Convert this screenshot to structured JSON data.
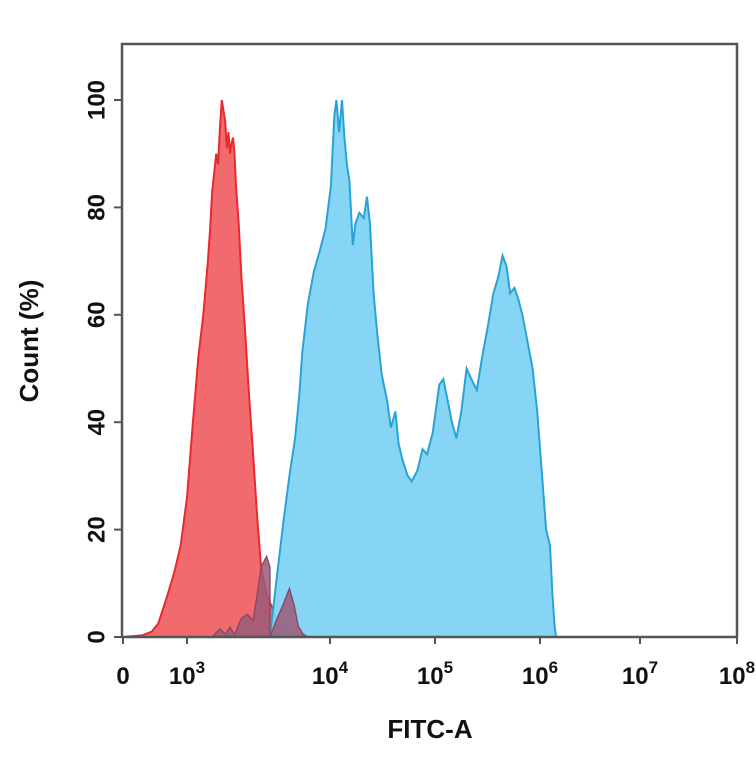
{
  "chart_data": {
    "type": "area",
    "title": "",
    "xlabel": "FITC-A",
    "ylabel": "Count  (%)",
    "x_scale": "log",
    "xlim": [
      0,
      100000000
    ],
    "ylim": [
      0,
      110
    ],
    "x_ticks": [
      {
        "value": 0,
        "base": "0",
        "exp": ""
      },
      {
        "value": 1000,
        "base": "10",
        "exp": "3"
      },
      {
        "value": 10000,
        "base": "10",
        "exp": "4"
      },
      {
        "value": 100000,
        "base": "10",
        "exp": "5"
      },
      {
        "value": 1000000,
        "base": "10",
        "exp": "6"
      },
      {
        "value": 10000000,
        "base": "10",
        "exp": "7"
      },
      {
        "value": 100000000,
        "base": "10",
        "exp": "8"
      }
    ],
    "y_ticks": [
      0,
      20,
      40,
      60,
      80,
      100
    ],
    "grid": false,
    "legend": "none",
    "series": [
      {
        "color": "#e8292e",
        "fill": "#f05a5e",
        "points": [
          [
            0,
            0
          ],
          [
            300,
            0.3
          ],
          [
            450,
            1
          ],
          [
            550,
            2.5
          ],
          [
            620,
            5
          ],
          [
            700,
            8
          ],
          [
            800,
            12
          ],
          [
            900,
            17
          ],
          [
            1000,
            26
          ],
          [
            1100,
            40
          ],
          [
            1200,
            52
          ],
          [
            1300,
            60
          ],
          [
            1400,
            70
          ],
          [
            1450,
            76
          ],
          [
            1500,
            83
          ],
          [
            1600,
            90
          ],
          [
            1650,
            88
          ],
          [
            1700,
            95
          ],
          [
            1750,
            100
          ],
          [
            1800,
            98
          ],
          [
            1850,
            96
          ],
          [
            1900,
            91
          ],
          [
            1950,
            94
          ],
          [
            2000,
            90
          ],
          [
            2050,
            92
          ],
          [
            2100,
            93
          ],
          [
            2150,
            90
          ],
          [
            2200,
            84
          ],
          [
            2300,
            77
          ],
          [
            2400,
            67
          ],
          [
            2550,
            57
          ],
          [
            2700,
            46
          ],
          [
            2900,
            34
          ],
          [
            3100,
            22
          ],
          [
            3300,
            13
          ],
          [
            3600,
            8
          ],
          [
            4000,
            5
          ],
          [
            4500,
            2
          ],
          [
            5200,
            0.8
          ],
          [
            6000,
            0.3
          ],
          [
            7000,
            0
          ]
        ]
      },
      {
        "color": "#29a3d6",
        "fill": "#7fd3f3",
        "points": [
          [
            3800,
            0
          ],
          [
            4200,
            10
          ],
          [
            4700,
            21
          ],
          [
            5200,
            30
          ],
          [
            5700,
            37
          ],
          [
            6100,
            45
          ],
          [
            6400,
            53
          ],
          [
            7000,
            62
          ],
          [
            7700,
            68
          ],
          [
            8500,
            72
          ],
          [
            9300,
            76
          ],
          [
            10200,
            84
          ],
          [
            11000,
            97
          ],
          [
            11500,
            100
          ],
          [
            12200,
            94
          ],
          [
            13000,
            100
          ],
          [
            13700,
            93
          ],
          [
            14500,
            88
          ],
          [
            15300,
            85
          ],
          [
            16500,
            73
          ],
          [
            17500,
            77
          ],
          [
            19000,
            79
          ],
          [
            21000,
            78
          ],
          [
            22500,
            82
          ],
          [
            24000,
            77
          ],
          [
            26000,
            64
          ],
          [
            28000,
            57
          ],
          [
            31000,
            49
          ],
          [
            35000,
            44
          ],
          [
            38000,
            39
          ],
          [
            42000,
            42
          ],
          [
            45000,
            36
          ],
          [
            49000,
            33
          ],
          [
            55000,
            30
          ],
          [
            60000,
            29
          ],
          [
            68000,
            31
          ],
          [
            76000,
            35
          ],
          [
            84000,
            34
          ],
          [
            95000,
            38
          ],
          [
            110000,
            47
          ],
          [
            120000,
            48
          ],
          [
            132000,
            44
          ],
          [
            145000,
            40
          ],
          [
            160000,
            37
          ],
          [
            178000,
            42
          ],
          [
            200000,
            50
          ],
          [
            222000,
            48
          ],
          [
            250000,
            46
          ],
          [
            280000,
            52
          ],
          [
            320000,
            58
          ],
          [
            360000,
            64
          ],
          [
            400000,
            67
          ],
          [
            440000,
            71
          ],
          [
            480000,
            69
          ],
          [
            520000,
            64
          ],
          [
            570000,
            65
          ],
          [
            620000,
            63
          ],
          [
            680000,
            60
          ],
          [
            760000,
            55
          ],
          [
            850000,
            50
          ],
          [
            940000,
            42
          ],
          [
            1050000,
            30
          ],
          [
            1150000,
            20
          ],
          [
            1260000,
            17
          ],
          [
            1330000,
            8
          ],
          [
            1400000,
            2
          ],
          [
            1450000,
            0
          ]
        ]
      },
      {
        "color": "#8a4a68",
        "fill": "#9a5a78",
        "points": [
          [
            3800,
            0
          ],
          [
            4200,
            3
          ],
          [
            4700,
            6
          ],
          [
            5200,
            9
          ],
          [
            5600,
            6
          ],
          [
            6000,
            2
          ],
          [
            6500,
            0.5
          ],
          [
            7000,
            0
          ]
        ],
        "overlap_start": [
          [
            1500,
            0
          ],
          [
            1700,
            1.5
          ],
          [
            1850,
            0.5
          ],
          [
            2000,
            1.8
          ],
          [
            2150,
            0.4
          ],
          [
            2400,
            3.5
          ],
          [
            2650,
            4.2
          ],
          [
            2900,
            3
          ],
          [
            3100,
            8
          ],
          [
            3300,
            13
          ],
          [
            3600,
            15
          ],
          [
            3800,
            13
          ]
        ]
      }
    ]
  }
}
